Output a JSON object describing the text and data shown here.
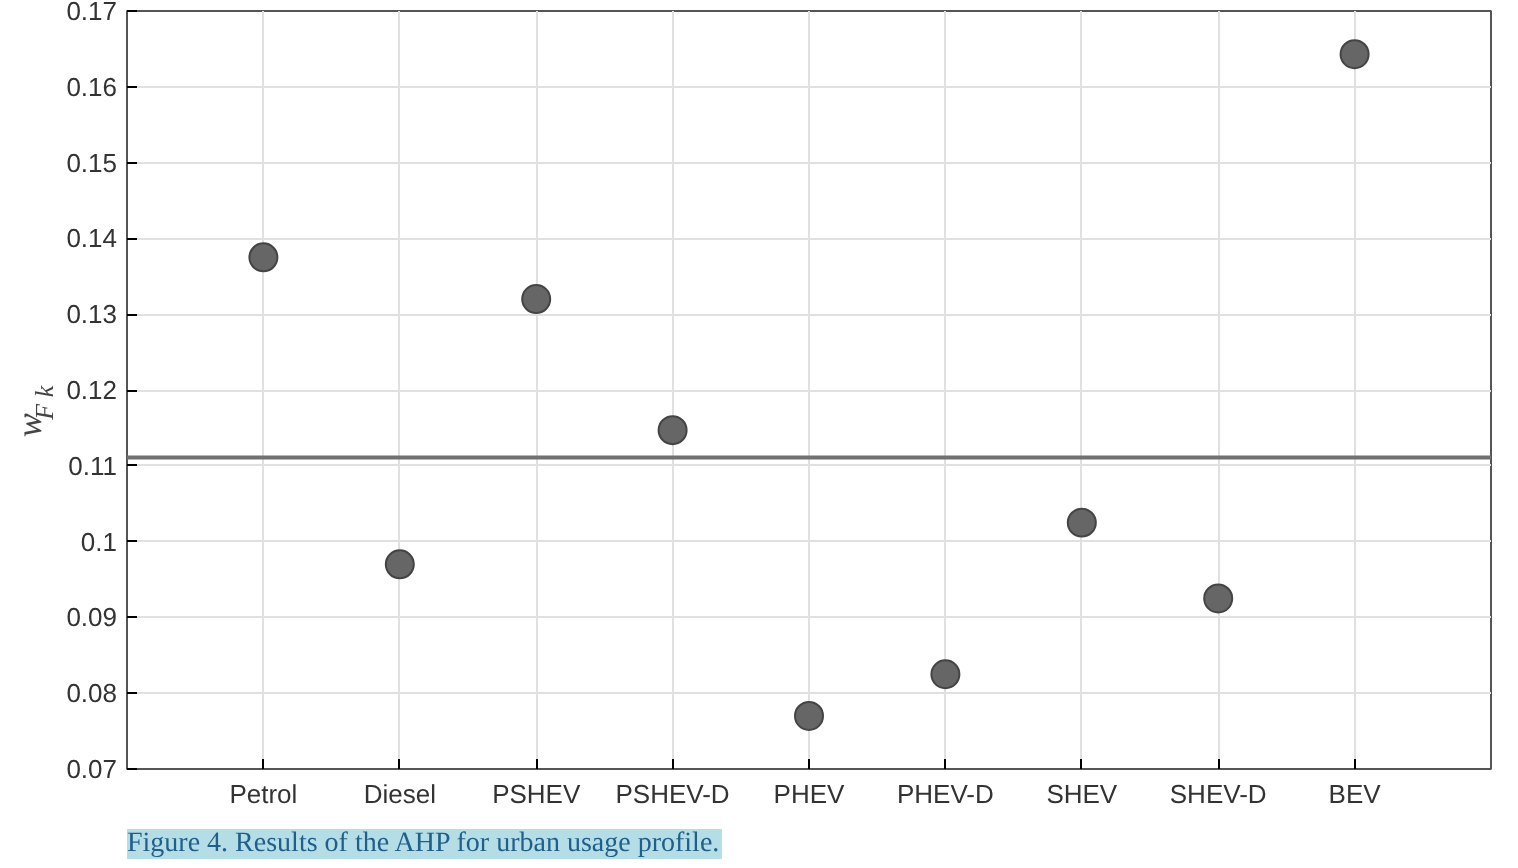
{
  "chart_data": {
    "type": "scatter",
    "ylabel": "w$_{F k}$",
    "categories": [
      "Petrol",
      "Diesel",
      "PSHEV",
      "PSHEV-D",
      "PHEV",
      "PHEV-D",
      "SHEV",
      "SHEV-D",
      "BEV"
    ],
    "values": [
      0.1375,
      0.097,
      0.132,
      0.1147,
      0.077,
      0.0825,
      0.1025,
      0.0925,
      0.1643
    ],
    "color": "#666666",
    "marker": "circle",
    "grid": true,
    "ylim": [
      0.07,
      0.17
    ],
    "yticks": [
      0.07,
      0.08,
      0.09,
      {
        "value": 0.1,
        "label": "0.1"
      },
      0.11,
      0.12,
      0.13,
      0.14,
      0.15,
      0.16,
      0.17
    ],
    "ref_lines": [
      {
        "axis": "y",
        "value": 0.1111,
        "color": "#707070"
      }
    ],
    "annotations": [
      "Figure 4. Results of the AHP for urban usage profile."
    ]
  }
}
